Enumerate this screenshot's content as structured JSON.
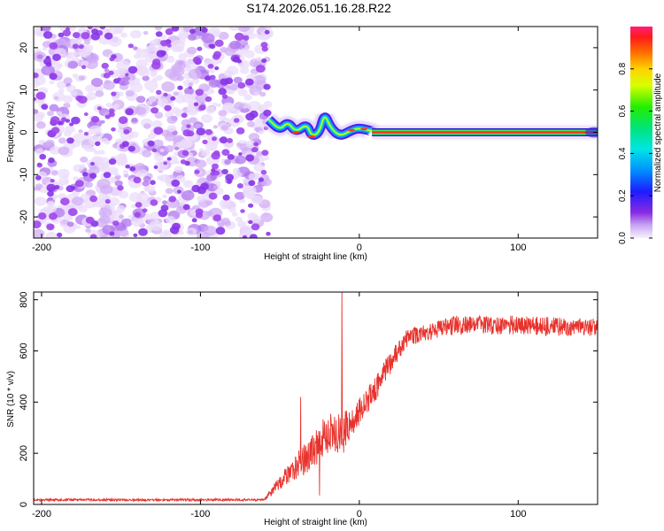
{
  "title": "S174.2026.051.16.28.R22",
  "chart_data": [
    {
      "type": "heatmap",
      "xlabel": "Height of straight line (km)",
      "ylabel": "Frequency (Hz)",
      "xlim": [
        -205,
        150
      ],
      "ylim": [
        -25,
        25
      ],
      "x_ticks": [
        -200,
        -100,
        0,
        100
      ],
      "y_ticks": [
        -20,
        -10,
        0,
        10,
        20
      ],
      "colorbar": {
        "label": "Normalized spectral amplitude",
        "range": [
          0,
          1
        ],
        "ticks": [
          "0.0",
          "0.2",
          "0.4",
          "0.6",
          "0.8"
        ]
      },
      "regions": [
        {
          "name": "noise",
          "x_range": [
            -205,
            -57
          ],
          "freq_range": [
            -25,
            25
          ],
          "amplitude": 0.1
        },
        {
          "name": "transition",
          "x_range": [
            -57,
            8
          ],
          "freq_points": [
            [
              -57,
              3
            ],
            [
              -50,
              0.5
            ],
            [
              -45,
              2.5
            ],
            [
              -40,
              0
            ],
            [
              -33,
              2
            ],
            [
              -30,
              -1
            ],
            [
              -25,
              0
            ],
            [
              -22,
              4.5
            ],
            [
              -18,
              1
            ],
            [
              -12,
              -1
            ],
            [
              -5,
              0.5
            ],
            [
              0,
              1
            ],
            [
              8,
              0.3
            ]
          ],
          "amplitude": 0.7
        },
        {
          "name": "carrier",
          "x_range": [
            8,
            150
          ],
          "freq": 0,
          "amplitude": 0.95
        }
      ]
    },
    {
      "type": "line",
      "xlabel": "Height of straight line (km)",
      "ylabel": "SNR (10 * v/v)",
      "xlim": [
        -205,
        150
      ],
      "ylim": [
        0,
        830
      ],
      "x_ticks": [
        -200,
        -100,
        0,
        100
      ],
      "y_ticks": [
        0,
        200,
        400,
        600,
        800
      ],
      "color": "#e8322d",
      "profile": [
        {
          "x": -205,
          "y": 18,
          "noise": 9
        },
        {
          "x": -60,
          "y": 18,
          "noise": 9
        },
        {
          "x": -45,
          "y": 120,
          "noise": 80
        },
        {
          "x": -30,
          "y": 200,
          "noise": 140
        },
        {
          "x": -20,
          "y": 280,
          "noise": 160
        },
        {
          "x": -10,
          "y": 280,
          "noise": 160
        },
        {
          "x": 0,
          "y": 360,
          "noise": 110
        },
        {
          "x": 10,
          "y": 450,
          "noise": 100
        },
        {
          "x": 20,
          "y": 560,
          "noise": 90
        },
        {
          "x": 30,
          "y": 650,
          "noise": 70
        },
        {
          "x": 60,
          "y": 700,
          "noise": 75
        },
        {
          "x": 100,
          "y": 700,
          "noise": 75
        },
        {
          "x": 150,
          "y": 690,
          "noise": 70
        }
      ],
      "spikes": [
        {
          "x": -37,
          "y": 420
        },
        {
          "x": -25,
          "y": 35
        },
        {
          "x": -11,
          "y": 830
        },
        {
          "x": -9,
          "y": 250
        }
      ]
    }
  ]
}
